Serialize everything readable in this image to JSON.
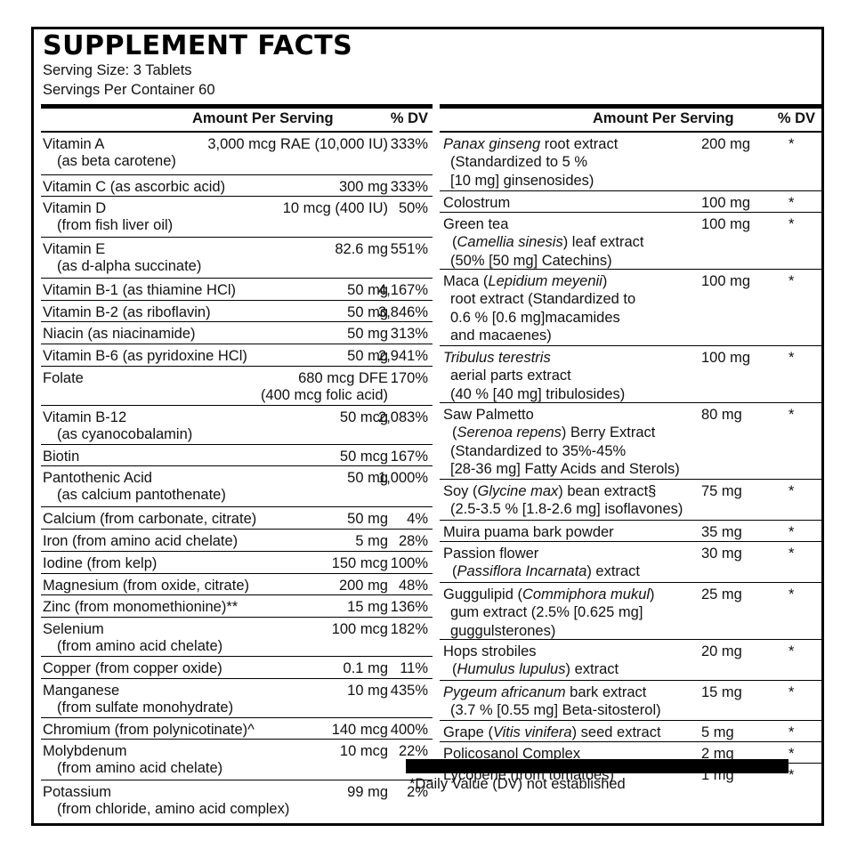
{
  "panel": {
    "title": "SUPPLEMENT FACTS",
    "serving_size": "Serving Size: 3 Tablets",
    "servings_per_container": "Servings Per Container 60",
    "footnote": "*Daily Value (DV) not established"
  },
  "left_column": {
    "header_amount": "Amount Per Serving",
    "header_dv": "% DV",
    "rows": [
      {
        "name": "Vitamin A",
        "sub": "(as beta carotene)",
        "amount": "3,000 mcg RAE (10,000 IU)",
        "dv": "333%"
      },
      {
        "name": "Vitamin C (as ascorbic acid)",
        "sub": "",
        "amount": "300 mg",
        "dv": "333%"
      },
      {
        "name": "Vitamin D",
        "sub": "(from fish liver oil)",
        "amount": "10 mcg (400 IU)",
        "dv": "50%"
      },
      {
        "name": "Vitamin E",
        "sub": "(as d-alpha succinate)",
        "amount": "82.6 mg",
        "dv": "551%"
      },
      {
        "name": "Vitamin B-1 (as thiamine HCl)",
        "sub": "",
        "amount": "50 mg",
        "dv": "4,167%"
      },
      {
        "name": "Vitamin B-2 (as riboflavin)",
        "sub": "",
        "amount": "50 mg",
        "dv": "3,846%"
      },
      {
        "name": "Niacin (as niacinamide)",
        "sub": "",
        "amount": "50 mg",
        "dv": "313%"
      },
      {
        "name": "Vitamin B-6 (as pyridoxine HCl)",
        "sub": "",
        "amount": "50 mg",
        "dv": "2,941%"
      },
      {
        "name": "Folate",
        "sub": "",
        "amount": "680 mcg DFE",
        "amount2": "(400 mcg folic acid)",
        "dv": "170%"
      },
      {
        "name": "Vitamin B-12",
        "sub": "(as cyanocobalamin)",
        "amount": "50 mcg",
        "dv": "2,083%"
      },
      {
        "name": "Biotin",
        "sub": "",
        "amount": "50 mcg",
        "dv": "167%"
      },
      {
        "name": "Pantothenic Acid",
        "sub": "(as calcium pantothenate)",
        "amount": "50 mg",
        "dv": "1,000%"
      },
      {
        "name": "Calcium (from carbonate, citrate)",
        "sub": "",
        "amount": "50 mg",
        "dv": "4%"
      },
      {
        "name": "Iron (from amino acid chelate)",
        "sub": "",
        "amount": "5 mg",
        "dv": "28%"
      },
      {
        "name": "Iodine (from kelp)",
        "sub": "",
        "amount": "150 mcg",
        "dv": "100%"
      },
      {
        "name": "Magnesium (from oxide, citrate)",
        "sub": "",
        "amount": "200 mg",
        "dv": "48%"
      },
      {
        "name": "Zinc (from monomethionine)**",
        "sub": "",
        "amount": "15 mg",
        "dv": "136%"
      },
      {
        "name": "Selenium",
        "sub": "(from amino acid chelate)",
        "amount": "100 mcg",
        "dv": "182%"
      },
      {
        "name": "Copper (from copper oxide)",
        "sub": "",
        "amount": "0.1 mg",
        "dv": "11%"
      },
      {
        "name": "Manganese",
        "sub": "(from sulfate monohydrate)",
        "amount": "10 mg",
        "dv": "435%"
      },
      {
        "name": "Chromium (from polynicotinate)^",
        "sub": "",
        "amount": "140 mcg",
        "dv": "400%"
      },
      {
        "name": "Molybdenum",
        "sub": "(from amino acid chelate)",
        "amount": "10 mcg",
        "dv": "22%"
      },
      {
        "name": "Potassium",
        "sub": "(from chloride, amino acid complex)",
        "amount": "99 mg",
        "dv": "2%"
      }
    ]
  },
  "right_column": {
    "header_amount": "Amount Per Serving",
    "header_dv": "% DV",
    "rows": [
      {
        "line1_italic": "Panax ginseng",
        "line1_rest": " root extract",
        "lines": [
          "(Standardized to 5 %",
          "[10 mg] ginsenosides)"
        ],
        "amount": "200 mg",
        "dv": "*"
      },
      {
        "line1_italic": "",
        "line1_rest": "Colostrum",
        "lines": [],
        "amount": "100 mg",
        "dv": "*"
      },
      {
        "line1_italic": "",
        "line1_rest": "Green tea",
        "lines_italic_first": [
          "Camellia sinesis",
          ") leaf extract"
        ],
        "lines": [
          "(50% [50 mg] Catechins)"
        ],
        "amount": "100 mg",
        "dv": "*"
      },
      {
        "line1_italic": "",
        "line1_rest": " Maca (",
        "line1_italic2": "Lepidium meyenii",
        "line1_rest2": ")",
        "lines": [
          "root extract (Standardized to",
          "0.6 %  [0.6 mg]macamides",
          "and macaenes)"
        ],
        "amount": "100 mg",
        "dv": "*"
      },
      {
        "line1_italic": "Tribulus terestris",
        "line1_rest": "",
        "lines": [
          "aerial parts extract",
          "(40 % [40 mg] tribulosides)"
        ],
        "amount": "100 mg",
        "dv": "*"
      },
      {
        "line1_italic": "",
        "line1_rest": "Saw Palmetto",
        "lines_italic_first": [
          "Serenoa repens",
          ") Berry Extract"
        ],
        "lines": [
          "(Standardized to 35%-45%",
          "[28-36 mg] Fatty Acids and Sterols)"
        ],
        "amount": "80 mg",
        "dv": "*"
      },
      {
        "line1_italic": "",
        "line1_rest": "Soy (",
        "line1_italic2": "Glycine max",
        "line1_rest2": ") bean extract§",
        "lines": [
          "(2.5-3.5 % [1.8-2.6 mg] isoflavones)"
        ],
        "amount": "75 mg",
        "dv": "*"
      },
      {
        "line1_italic": "",
        "line1_rest": "Muira puama bark powder",
        "lines": [],
        "amount": "35 mg",
        "dv": "*"
      },
      {
        "line1_italic": "",
        "line1_rest": "Passion flower",
        "lines_italic_first": [
          "Passiflora Incarnata",
          ") extract"
        ],
        "lines": [],
        "amount": "30 mg",
        "dv": "*"
      },
      {
        "line1_italic": "",
        "line1_rest": "Guggulipid (",
        "line1_italic2": "Commiphora mukul",
        "line1_rest2": ")",
        "lines": [
          "gum extract (2.5% [0.625 mg]",
          "guggulsterones)"
        ],
        "amount": "25 mg",
        "dv": "*"
      },
      {
        "line1_italic": "",
        "line1_rest": "Hops strobiles",
        "lines_italic_first": [
          "Humulus lupulus",
          ") extract"
        ],
        "lines": [],
        "amount": "20 mg",
        "dv": "*"
      },
      {
        "line1_italic": "Pygeum africanum",
        "line1_rest": " bark extract",
        "lines": [
          "(3.7 % [0.55 mg] Beta-sitosterol)"
        ],
        "amount": "15 mg",
        "dv": "*"
      },
      {
        "line1_italic": "",
        "line1_rest": "Grape (",
        "line1_italic2": "Vitis vinifera",
        "line1_rest2": ") seed extract",
        "lines": [],
        "amount": "5 mg",
        "dv": "*"
      },
      {
        "line1_italic": "",
        "line1_rest": "Policosanol Complex",
        "lines": [],
        "amount": "2 mg",
        "dv": "*"
      },
      {
        "line1_italic": "",
        "line1_rest": "Lycopene (from tomatoes)",
        "lines": [],
        "amount": "1 mg",
        "dv": "*"
      }
    ]
  }
}
